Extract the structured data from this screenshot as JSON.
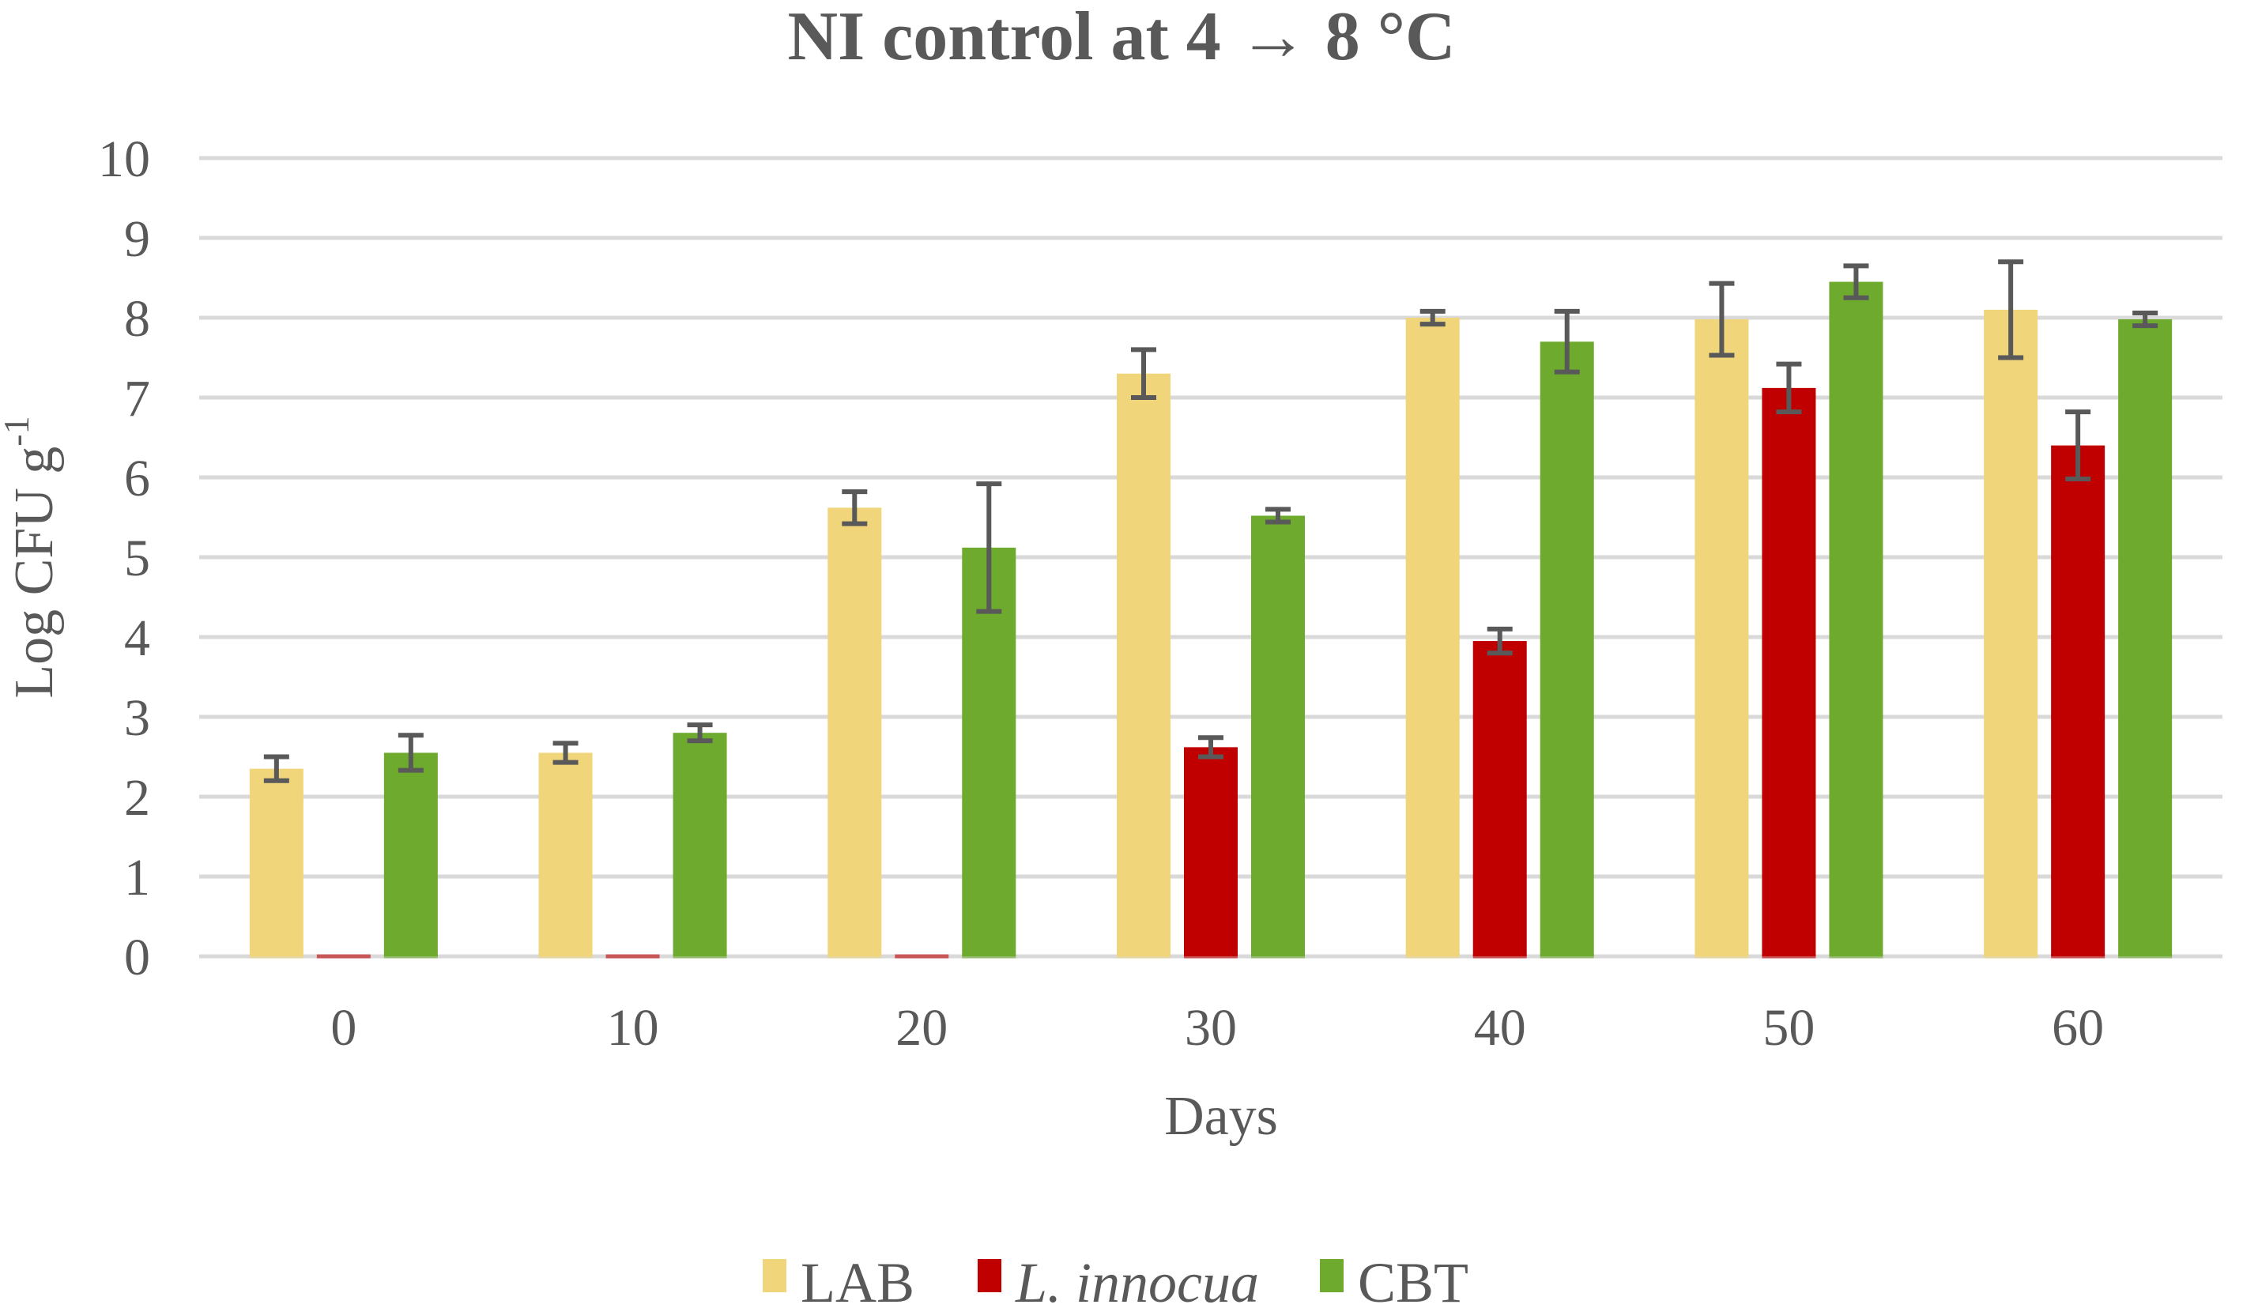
{
  "chart_data": {
    "type": "bar",
    "title": "NI control at 4 → 8 °C",
    "xlabel": "Days",
    "ylabel_main": "Log CFU g",
    "ylabel_sup": "-1",
    "ylim": [
      0,
      10
    ],
    "yticks": [
      "0",
      "1",
      "2",
      "3",
      "4",
      "5",
      "6",
      "7",
      "8",
      "9",
      "10"
    ],
    "categories": [
      "0",
      "10",
      "20",
      "30",
      "40",
      "50",
      "60"
    ],
    "grid": true,
    "legend_position": "bottom",
    "series": [
      {
        "name": "LAB",
        "italic": false,
        "color": "#f0d57a",
        "values": [
          2.35,
          2.55,
          5.62,
          7.3,
          8.0,
          7.98,
          8.1
        ],
        "errors": [
          0.15,
          0.12,
          0.2,
          0.3,
          0.08,
          0.45,
          0.6
        ]
      },
      {
        "name": "L. innocua",
        "italic": true,
        "color": "#c00000",
        "values": [
          0,
          0,
          0,
          2.62,
          3.95,
          7.12,
          6.4
        ],
        "errors": [
          0,
          0,
          0,
          0.12,
          0.15,
          0.3,
          0.42
        ]
      },
      {
        "name": "CBT",
        "italic": false,
        "color": "#6eaa2e",
        "values": [
          2.55,
          2.8,
          5.12,
          5.52,
          7.7,
          8.45,
          7.98
        ],
        "errors": [
          0.22,
          0.1,
          0.8,
          0.08,
          0.38,
          0.2,
          0.08
        ]
      }
    ]
  }
}
